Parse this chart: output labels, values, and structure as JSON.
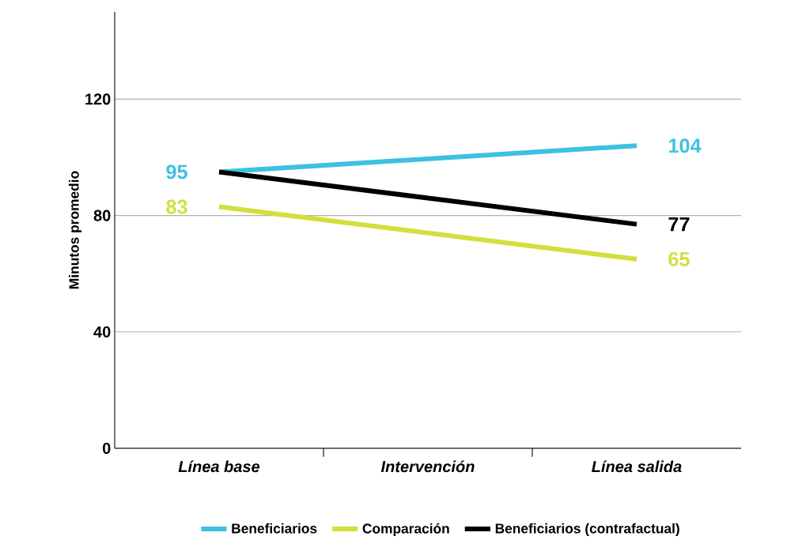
{
  "chart_data": {
    "type": "line",
    "ylabel": "Minutos promedio",
    "categories": [
      "Línea base",
      "Intervención",
      "Línea salida"
    ],
    "series": [
      {
        "name": "Beneficiarios",
        "color": "#3dc1e1",
        "values": [
          95,
          null,
          104
        ],
        "value_labels": [
          "95",
          null,
          "104"
        ]
      },
      {
        "name": "Comparación",
        "color": "#d3df3c",
        "values": [
          83,
          null,
          65
        ],
        "value_labels": [
          "83",
          null,
          "65"
        ]
      },
      {
        "name": "Beneficiarios (contrafactual)",
        "color": "#000000",
        "values": [
          95,
          null,
          77
        ],
        "value_labels": [
          null,
          null,
          "77"
        ]
      }
    ],
    "ylim": [
      0,
      150
    ],
    "yticks": [
      0,
      40,
      80,
      120
    ],
    "grid": "y",
    "legend": "bottom",
    "marker": "none",
    "line_style": "solid"
  }
}
